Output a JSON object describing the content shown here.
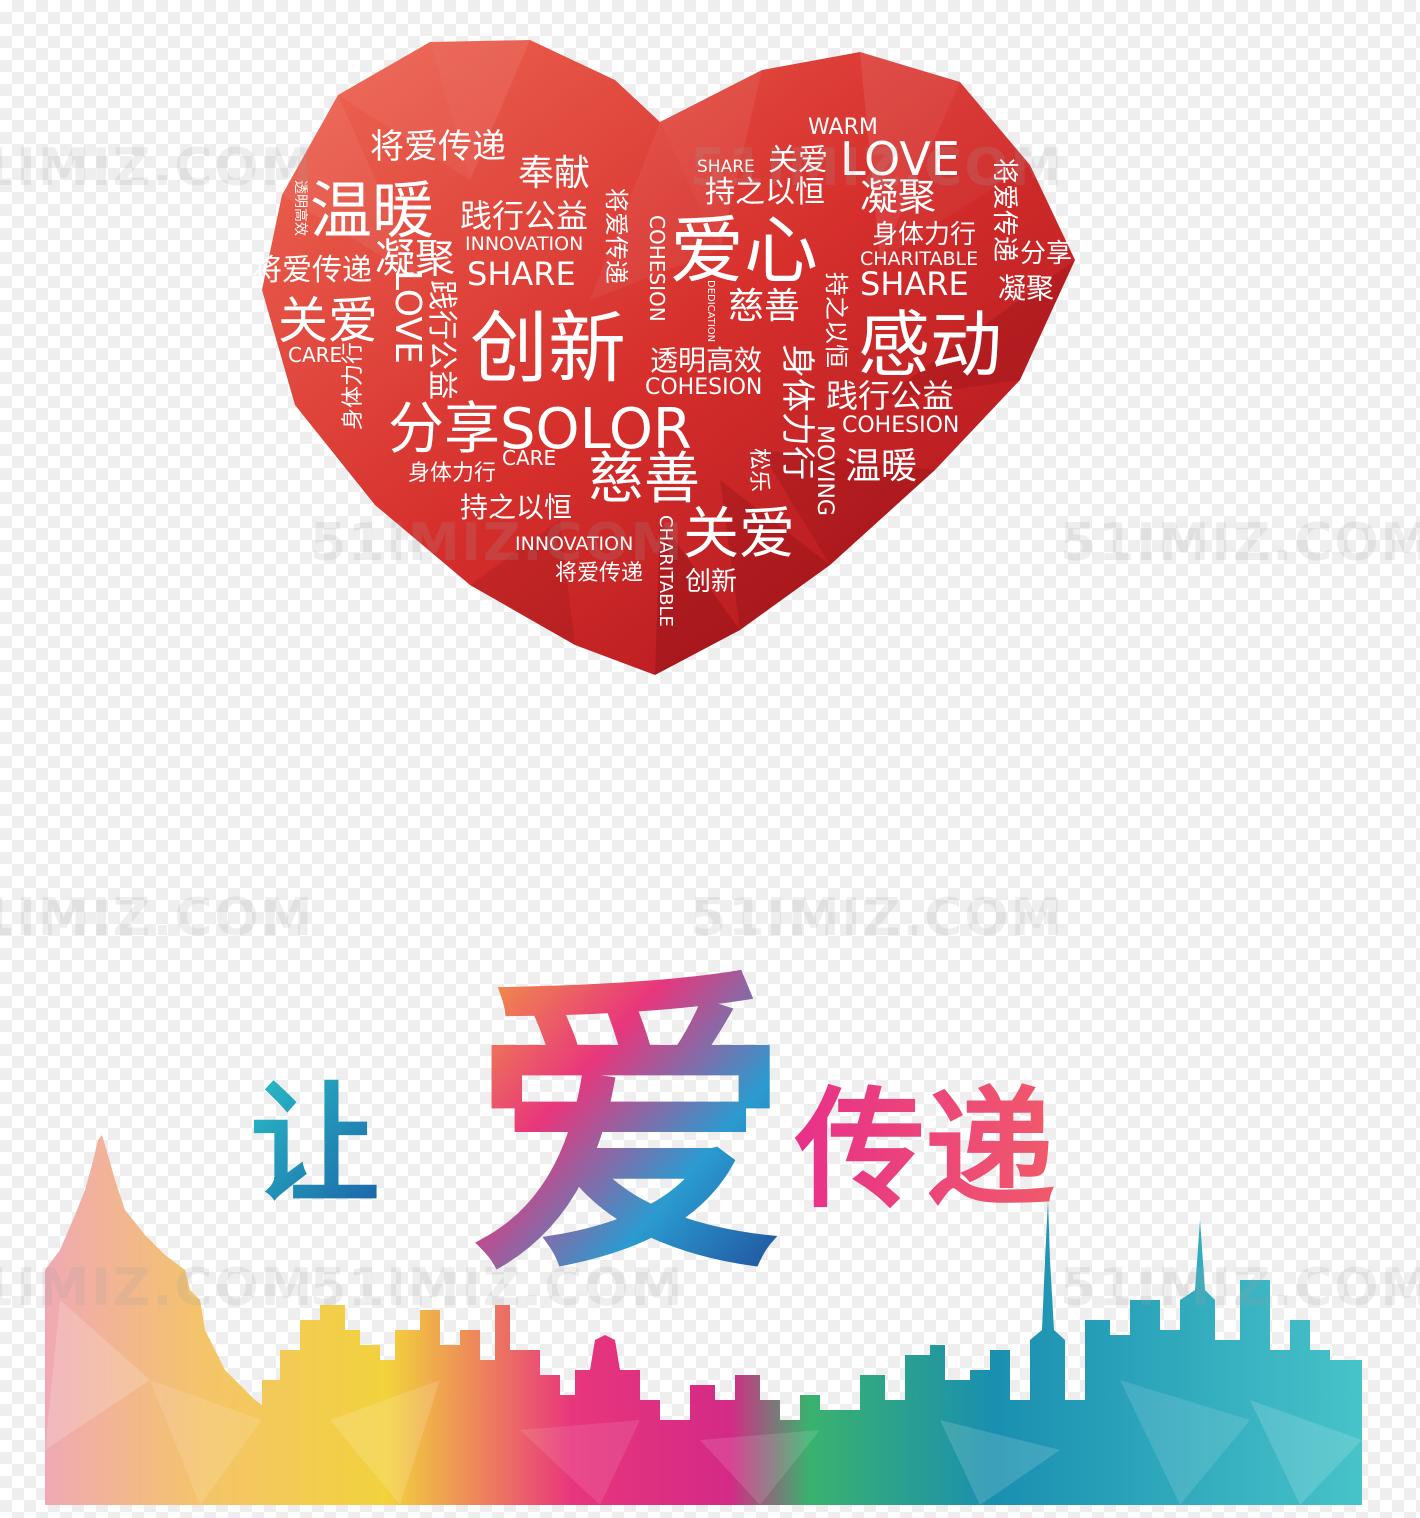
{
  "heart_words": {
    "w01": "将爱传递",
    "w02": "奉献",
    "w03": "温暖",
    "w04": "践行公益",
    "w05": "INNOVATION",
    "w06": "凝聚",
    "w07": "SHARE",
    "w08": "将爱传递",
    "w09": "关爱",
    "w10": "LOVE",
    "w11": "践行公益",
    "w12": "创新",
    "w13": "CARE",
    "w14": "身体力行",
    "w15": "分享SOLOR",
    "w16": "CARE",
    "w17": "身体力行",
    "w18": "持之以恒",
    "w19": "慈善",
    "w20": "INNOVATION",
    "w21": "将爱传递",
    "w22": "COHESION",
    "w23": "将爱传递",
    "w24": "透明高效",
    "w25": "COHESION",
    "w26": "CHARITABLE",
    "w27": "创新",
    "w28": "SHARE",
    "w29": "关爱",
    "w30": "WARM",
    "w31": "LOVE",
    "w32": "持之以恒",
    "w33": "爱心",
    "w34": "凝聚",
    "w35": "身体力行",
    "w36": "CHARITABLE",
    "w37": "SHARE",
    "w38": "慈善",
    "w39": "DEDICATION",
    "w40": "持之以恒",
    "w41": "感动",
    "w42": "身体力行",
    "w43": "践行公益",
    "w44": "COHESION",
    "w45": "MOVING",
    "w46": "松乐",
    "w47": "温暖",
    "w48": "关爱",
    "w49": "将爱传递",
    "w50": "分享",
    "w51": "凝聚",
    "w52": "透明高效"
  },
  "title": {
    "char1": "让",
    "char2": "爱",
    "char3": "传递"
  },
  "watermarks": [
    "51IMIZ.COM",
    "51IMIZ.COM",
    "51IMIZ.COM",
    "51IMIZ.COM",
    "51IMIZ.COM",
    "51IMIZ.COM",
    "51IMIZ.COM",
    "51IMIZ.COM",
    "51IMIZ.COM"
  ],
  "colors": {
    "heart_light": "#e8574a",
    "heart_dark": "#b8121c",
    "title_blue": "#1f8fc4",
    "title_pink": "#e8308a",
    "skyline_yellow": "#f2c84b",
    "skyline_pink": "#e8367c",
    "skyline_teal": "#2fb7c7"
  }
}
